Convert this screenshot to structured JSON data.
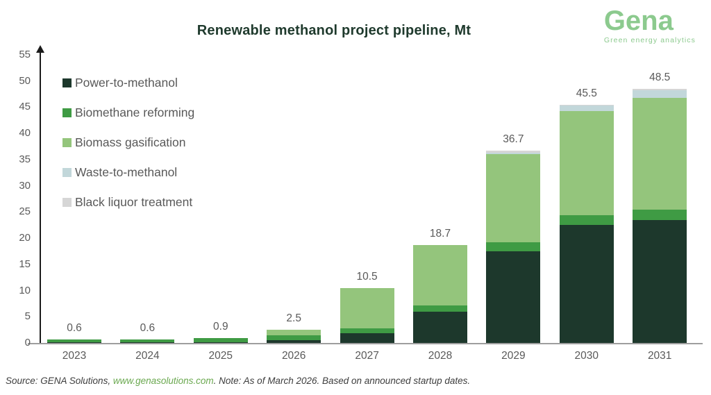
{
  "header": {
    "title": "Renewable methanol project pipeline, Mt"
  },
  "logo": {
    "name": "Gena",
    "tagline": "Green energy analytics",
    "color": "#8cca8e"
  },
  "footer": {
    "source_prefix": "Source: GENA Solutions, ",
    "source_link": "www.genasolutions.com",
    "source_suffix": ". Note: As of March 2026. Based on announced startup dates.",
    "link_color": "#6aa84f"
  },
  "chart_data": {
    "type": "bar",
    "stacked": true,
    "title": "Renewable methanol project pipeline, Mt",
    "unit": "Mt",
    "categories": [
      "2023",
      "2024",
      "2025",
      "2026",
      "2027",
      "2028",
      "2029",
      "2030",
      "2031"
    ],
    "series": [
      {
        "name": "Power-to-methanol",
        "color": "#1d382c",
        "values": [
          0.1,
          0.1,
          0.1,
          0.5,
          1.8,
          6.0,
          17.5,
          22.5,
          23.5
        ]
      },
      {
        "name": "Biomethane reforming",
        "color": "#3f9b44",
        "values": [
          0.5,
          0.5,
          0.8,
          1.0,
          1.0,
          1.2,
          1.7,
          1.9,
          1.9
        ]
      },
      {
        "name": "Biomass gasification",
        "color": "#94c57c",
        "values": [
          0,
          0,
          0,
          1.0,
          7.7,
          11.5,
          16.9,
          19.9,
          21.4
        ]
      },
      {
        "name": "Waste-to-methanol",
        "color": "#c2d7da",
        "values": [
          0,
          0,
          0,
          0,
          0,
          0,
          0.2,
          1.0,
          1.5
        ]
      },
      {
        "name": "Black liquor treatment",
        "color": "#d6d6d6",
        "values": [
          0,
          0,
          0,
          0,
          0,
          0,
          0.4,
          0.2,
          0.2
        ]
      }
    ],
    "totals": [
      0.6,
      0.6,
      0.9,
      2.5,
      10.5,
      18.7,
      36.7,
      45.5,
      48.5
    ],
    "ylim": [
      0,
      55
    ],
    "ytick_step": 5,
    "yticks": [
      0,
      5,
      10,
      15,
      20,
      25,
      30,
      35,
      40,
      45,
      50,
      55
    ],
    "grid": false,
    "legend_position": "upper-left-inside",
    "axis_color": "#1a1a1a",
    "label_color": "#595959"
  }
}
